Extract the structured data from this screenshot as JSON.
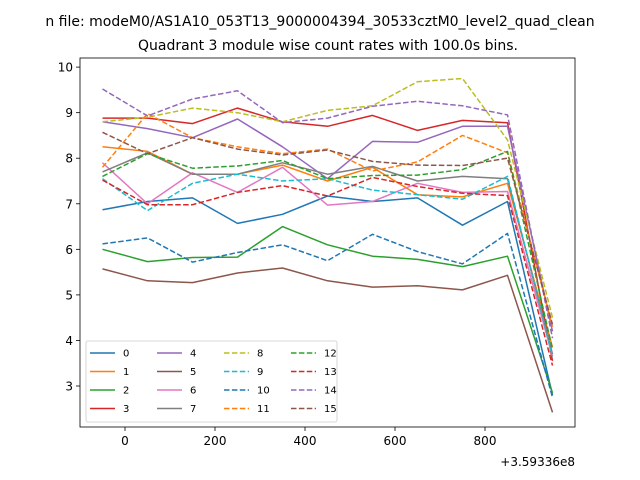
{
  "chart_data": {
    "type": "line",
    "suptitle": "n file: modeM0/AS1A10_053T13_9000004394_30533cztM0_level2_quad_clean",
    "title": "Quadrant 3 module wise count rates with 100.0s bins.",
    "xlabel": "",
    "ylabel": "",
    "x_offset_label": "+3.59336e8",
    "xlim": [
      -100,
      1000
    ],
    "ylim": [
      2.1,
      10.2
    ],
    "x_ticks": [
      0,
      200,
      400,
      600,
      800
    ],
    "y_ticks": [
      3,
      4,
      5,
      6,
      7,
      8,
      9,
      10
    ],
    "x": [
      -50,
      50,
      150,
      250,
      350,
      450,
      550,
      650,
      750,
      850,
      950
    ],
    "legend_position": "lower-left",
    "series": [
      {
        "name": "0",
        "color": "#1f77b4",
        "dash": "solid",
        "values": [
          6.87,
          7.05,
          7.13,
          6.57,
          6.77,
          7.17,
          7.05,
          7.13,
          6.53,
          7.05,
          2.8
        ]
      },
      {
        "name": "1",
        "color": "#ff7f0e",
        "dash": "solid",
        "values": [
          8.25,
          8.15,
          7.65,
          7.65,
          7.85,
          7.5,
          7.8,
          7.2,
          7.15,
          7.45,
          3.85
        ]
      },
      {
        "name": "2",
        "color": "#2ca02c",
        "dash": "solid",
        "values": [
          6.0,
          5.73,
          5.82,
          5.83,
          6.5,
          6.1,
          5.85,
          5.78,
          5.62,
          5.85,
          2.85
        ]
      },
      {
        "name": "3",
        "color": "#d62728",
        "dash": "solid",
        "values": [
          8.88,
          8.88,
          8.76,
          9.1,
          8.8,
          8.7,
          8.94,
          8.61,
          8.83,
          8.78,
          3.55
        ]
      },
      {
        "name": "4",
        "color": "#9467bd",
        "dash": "solid",
        "values": [
          8.8,
          8.65,
          8.45,
          8.86,
          8.25,
          7.55,
          8.37,
          8.35,
          8.7,
          8.7,
          4.2
        ]
      },
      {
        "name": "5",
        "color": "#8c564b",
        "dash": "solid",
        "values": [
          5.57,
          5.31,
          5.27,
          5.48,
          5.59,
          5.31,
          5.17,
          5.2,
          5.11,
          5.43,
          2.42
        ]
      },
      {
        "name": "6",
        "color": "#e377c2",
        "dash": "solid",
        "values": [
          7.9,
          7.0,
          7.68,
          7.25,
          7.8,
          6.97,
          7.05,
          7.45,
          7.25,
          7.27,
          3.65
        ]
      },
      {
        "name": "7",
        "color": "#7f7f7f",
        "dash": "solid",
        "values": [
          7.7,
          8.12,
          7.65,
          7.65,
          7.9,
          7.65,
          7.82,
          7.5,
          7.6,
          7.55,
          3.7
        ]
      },
      {
        "name": "8",
        "color": "#bcbd22",
        "dash": "dashed",
        "values": [
          8.8,
          8.9,
          9.1,
          9.0,
          8.8,
          9.05,
          9.15,
          9.68,
          9.75,
          8.4,
          4.5
        ]
      },
      {
        "name": "9",
        "color": "#17becf",
        "dash": "dashed",
        "values": [
          7.55,
          6.85,
          7.45,
          7.65,
          7.5,
          7.55,
          7.3,
          7.2,
          7.1,
          7.6,
          3.65
        ]
      },
      {
        "name": "10",
        "color": "#1f77b4",
        "dash": "dashed",
        "values": [
          6.12,
          6.25,
          5.72,
          5.93,
          6.1,
          5.75,
          6.33,
          5.95,
          5.68,
          6.35,
          2.75
        ]
      },
      {
        "name": "11",
        "color": "#ff7f0e",
        "dash": "dashed",
        "values": [
          7.8,
          8.98,
          8.45,
          8.25,
          8.1,
          8.2,
          7.72,
          7.92,
          8.5,
          8.12,
          4.3
        ]
      },
      {
        "name": "12",
        "color": "#2ca02c",
        "dash": "dashed",
        "values": [
          7.6,
          8.1,
          7.78,
          7.83,
          7.95,
          7.55,
          7.62,
          7.63,
          7.75,
          8.15,
          3.8
        ]
      },
      {
        "name": "13",
        "color": "#d62728",
        "dash": "dashed",
        "values": [
          7.52,
          6.98,
          6.98,
          7.25,
          7.4,
          7.17,
          7.58,
          7.38,
          7.23,
          7.18,
          3.45
        ]
      },
      {
        "name": "14",
        "color": "#9467bd",
        "dash": "dashed",
        "values": [
          9.52,
          8.93,
          9.3,
          9.48,
          8.78,
          8.88,
          9.14,
          9.25,
          9.15,
          8.95,
          4.05
        ]
      },
      {
        "name": "15",
        "color": "#8c564b",
        "dash": "dashed",
        "values": [
          8.57,
          8.1,
          8.45,
          8.2,
          8.07,
          8.18,
          7.93,
          7.85,
          7.84,
          8.0,
          4.35
        ]
      }
    ]
  }
}
